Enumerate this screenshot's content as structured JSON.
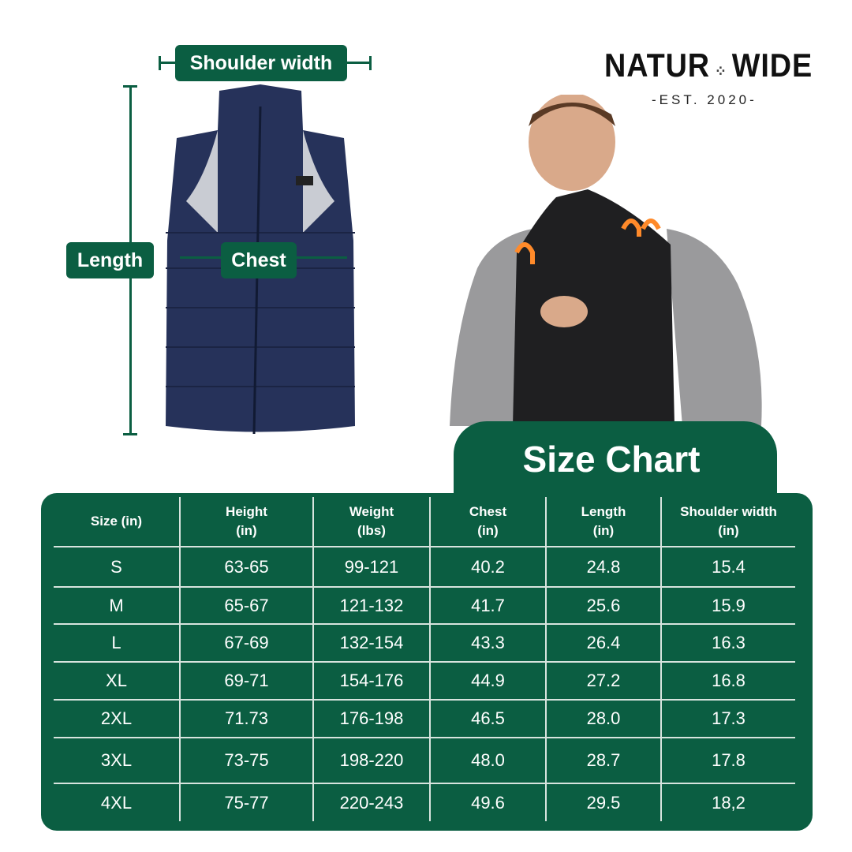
{
  "brand": {
    "name_left": "NATUR",
    "name_right": "WIDE",
    "tagline": "-EST. 2020-",
    "colors": {
      "green": "#0b5e42",
      "vest_blue": "#26325a"
    }
  },
  "measure_labels": {
    "shoulder": "Shoulder width",
    "length": "Length",
    "chest": "Chest"
  },
  "size_chart": {
    "title": "Size Chart",
    "headers": [
      [
        "Size (in)"
      ],
      [
        "Height",
        "(in)"
      ],
      [
        "Weight",
        "(lbs)"
      ],
      [
        "Chest",
        "(in)"
      ],
      [
        "Length",
        "(in)"
      ],
      [
        "Shoulder width",
        "(in)"
      ]
    ],
    "rows": [
      [
        "S",
        "63-65",
        "99-121",
        "40.2",
        "24.8",
        "15.4"
      ],
      [
        "M",
        "65-67",
        "121-132",
        "41.7",
        "25.6",
        "15.9"
      ],
      [
        "L",
        "67-69",
        "132-154",
        "43.3",
        "26.4",
        "16.3"
      ],
      [
        "XL",
        "69-71",
        "154-176",
        "44.9",
        "27.2",
        "16.8"
      ],
      [
        "2XL",
        "71.73",
        "176-198",
        "46.5",
        "28.0",
        "17.3"
      ],
      [
        "3XL",
        "73-75",
        "198-220",
        "48.0",
        "28.7",
        "17.8"
      ],
      [
        "4XL",
        "75-77",
        "220-243",
        "49.6",
        "29.5",
        "18,2"
      ]
    ]
  }
}
